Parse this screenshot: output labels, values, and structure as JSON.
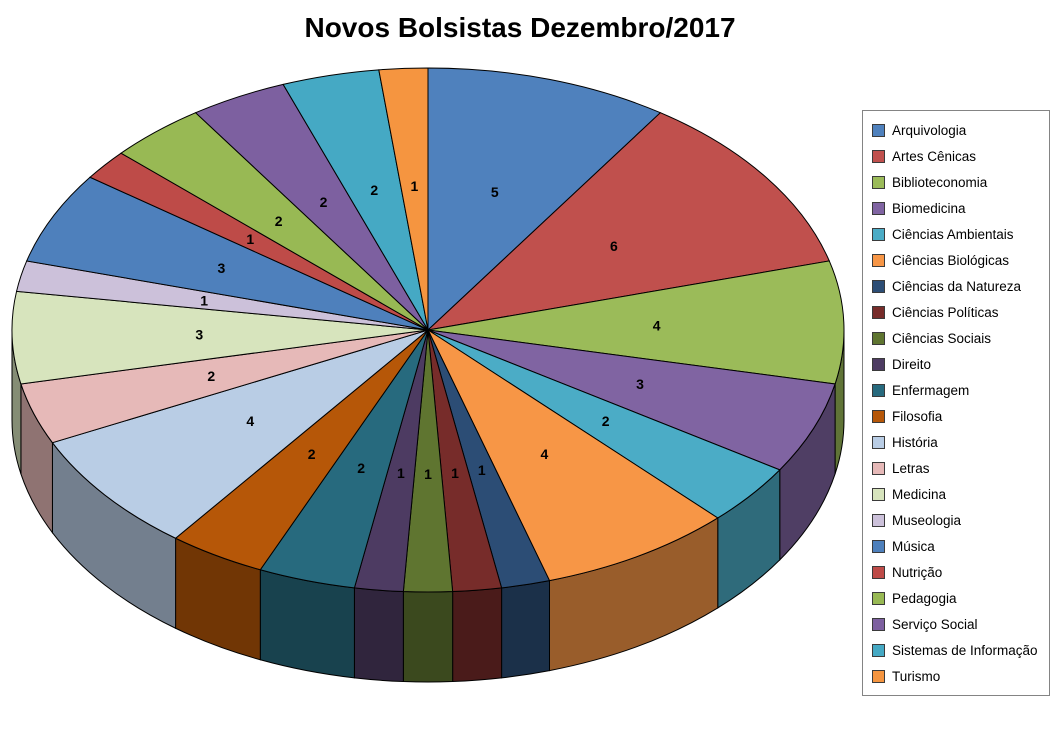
{
  "chart_data": {
    "type": "pie",
    "style": "3d",
    "title": "Novos Bolsistas Dezembro/2017",
    "legend_position": "right",
    "data_labels": "value",
    "categories": [
      "Arquivologia",
      "Artes Cênicas",
      "Biblioteconomia",
      "Biomedicina",
      "Ciências Ambientais",
      "Ciências Biológicas",
      "Ciências da Natureza",
      "Ciências Políticas",
      "Ciências Sociais",
      "Direito",
      "Enfermagem",
      "Filosofia",
      "História",
      "Letras",
      "Medicina",
      "Museologia",
      "Música",
      "Nutrição",
      "Pedagogia",
      "Serviço Social",
      "Sistemas de Informação",
      "Turismo"
    ],
    "values": [
      5,
      6,
      4,
      3,
      2,
      4,
      1,
      1,
      1,
      1,
      2,
      2,
      4,
      2,
      3,
      1,
      3,
      1,
      2,
      2,
      2,
      1
    ],
    "colors": [
      "#4F81BD",
      "#C0504D",
      "#9BBB59",
      "#8064A2",
      "#4BACC6",
      "#F79646",
      "#2C4D75",
      "#772C2A",
      "#5F7530",
      "#4D3B62",
      "#276A7E",
      "#B65708",
      "#B9CDE5",
      "#E6B9B8",
      "#D7E4BD",
      "#CCC1DA",
      "#4E80BC",
      "#BE4B48",
      "#98B954",
      "#7D60A0",
      "#45A9C4",
      "#F59540"
    ]
  }
}
